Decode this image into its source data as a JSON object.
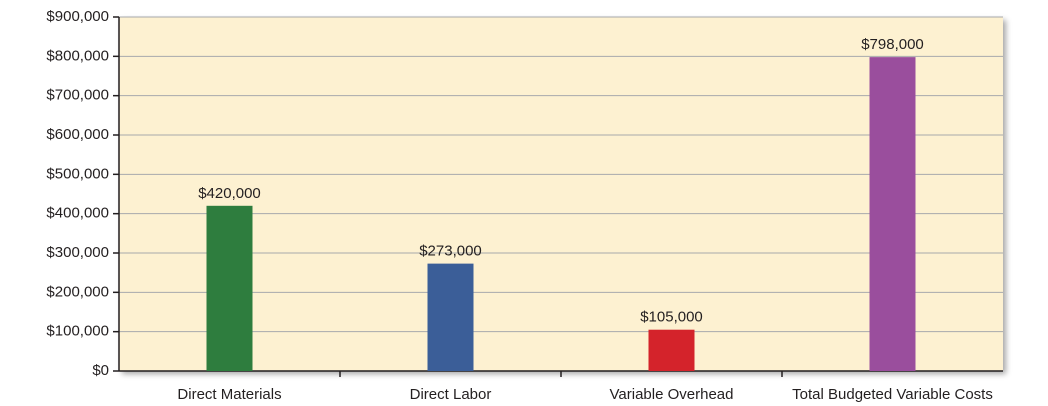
{
  "chart_data": {
    "type": "bar",
    "categories": [
      "Direct Materials",
      "Direct Labor",
      "Variable Overhead",
      "Total Budgeted Variable Costs"
    ],
    "values": [
      420000,
      273000,
      105000,
      798000
    ],
    "value_labels": [
      "$420,000",
      "$273,000",
      "$105,000",
      "$798,000"
    ],
    "colors": [
      "#2e7d3e",
      "#3b5e98",
      "#d4232b",
      "#9a4e9d"
    ],
    "ylim": [
      0,
      900000
    ],
    "yticks": [
      {
        "value": 0,
        "label": "$0"
      },
      {
        "value": 100000,
        "label": "$100,000"
      },
      {
        "value": 200000,
        "label": "$200,000"
      },
      {
        "value": 300000,
        "label": "$300,000"
      },
      {
        "value": 400000,
        "label": "$400,000"
      },
      {
        "value": 500000,
        "label": "$500,000"
      },
      {
        "value": 600000,
        "label": "$600,000"
      },
      {
        "value": 700000,
        "label": "$700,000"
      },
      {
        "value": 800000,
        "label": "$800,000"
      },
      {
        "value": 900000,
        "label": "$900,000"
      }
    ],
    "grid": true
  }
}
